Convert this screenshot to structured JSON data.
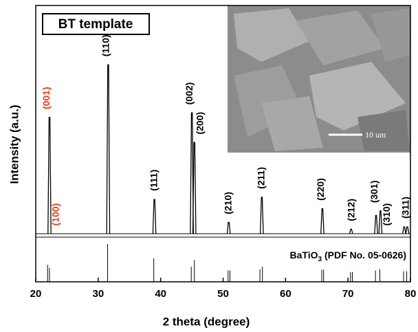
{
  "chart_data": {
    "type": "xrd",
    "xlabel": "2 theta (degree)",
    "ylabel": "Intensity (a.u.)",
    "legend_text": "BT template",
    "inset_scale": "10 um",
    "xlim": [
      20,
      80
    ],
    "xticks": [
      20,
      30,
      40,
      50,
      60,
      70,
      80
    ],
    "ylim": [
      0,
      100
    ],
    "series": [
      {
        "name": "BT template",
        "color": "#000000",
        "x": [
          22.2,
          31.6,
          39.0,
          45.0,
          45.4,
          50.9,
          56.2,
          65.9,
          70.5,
          74.5,
          75.2,
          79.0,
          79.5
        ],
        "values": [
          51,
          74,
          15,
          53,
          40,
          5,
          16,
          11,
          2,
          8,
          10,
          3,
          3
        ]
      }
    ],
    "peak_labels": [
      {
        "text": "(001)",
        "x": 21.8,
        "color": "#e8401c"
      },
      {
        "text": "(100)",
        "x": 23.3,
        "color": "#e8401c"
      },
      {
        "text": "(110)",
        "x": 31.3,
        "color": "#000000"
      },
      {
        "text": "(111)",
        "x": 39.0,
        "color": "#000000"
      },
      {
        "text": "(002)",
        "x": 44.7,
        "color": "#000000"
      },
      {
        "text": "(200)",
        "x": 46.4,
        "color": "#000000"
      },
      {
        "text": "(210)",
        "x": 50.9,
        "color": "#000000"
      },
      {
        "text": "(211)",
        "x": 56.2,
        "color": "#000000"
      },
      {
        "text": "(220)",
        "x": 65.7,
        "color": "#000000"
      },
      {
        "text": "(212)",
        "x": 70.6,
        "color": "#000000"
      },
      {
        "text": "(301)",
        "x": 74.3,
        "color": "#000000"
      },
      {
        "text": "(310)",
        "x": 76.3,
        "color": "#000000"
      },
      {
        "text": "(311)",
        "x": 79.3,
        "color": "#000000"
      }
    ],
    "reference": {
      "name_parts": [
        "BaTiO",
        "3",
        " (PDF No. 05-0626)"
      ],
      "color": "#000000",
      "ylim": [
        0,
        100
      ],
      "x": [
        21.9,
        22.2,
        31.5,
        38.9,
        44.9,
        45.4,
        50.8,
        51.1,
        55.9,
        56.3,
        65.8,
        66.1,
        70.4,
        70.7,
        74.4,
        75.1,
        78.9,
        79.4
      ],
      "values": [
        45,
        37,
        100,
        62,
        40,
        58,
        30,
        30,
        33,
        40,
        32,
        32,
        26,
        26,
        30,
        33,
        28,
        28
      ]
    }
  }
}
